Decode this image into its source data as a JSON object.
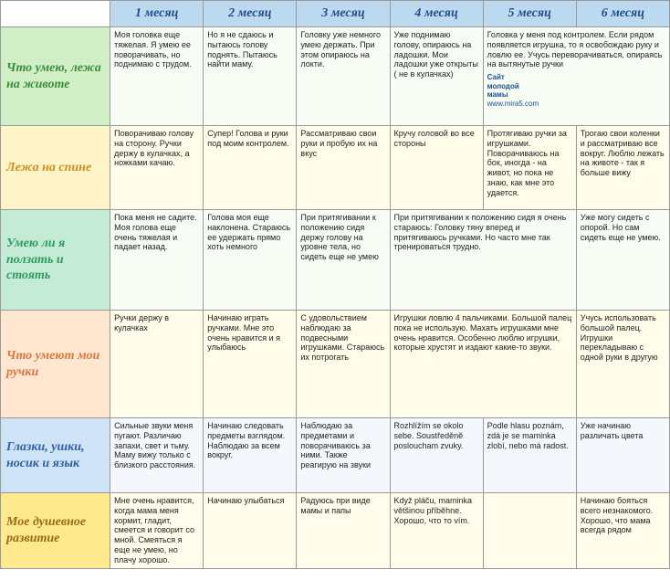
{
  "months": [
    "1 месяц",
    "2 месяц",
    "3 месяц",
    "4 месяц",
    "5 месяц",
    "6 месяц"
  ],
  "site": {
    "t1": "Сайт",
    "t2": "молодой",
    "t3": "мамы",
    "url": "www.mira5.com"
  },
  "rows": [
    {
      "label": "Что умею, лежа на животе",
      "cells": [
        "Моя головка еще тяжелая. Я умею ее поворачивать, но поднимаю с трудом.",
        "Но я не сдаюсь и пытаюсь голову поднять. Пытаюсь найти маму.",
        "Головку уже немного умею держать. При этом опираюсь на локти.",
        "Уже поднимаю голову, опираюсь на ладошки. Мои ладошки уже открыты ( не в кулачках)",
        "Головка у меня под контролем. Если рядом появляется игрушка, то я освобождаю руку и ловлю ее. Учусь переворачиваться, опираясь на вытянутые ручки"
      ],
      "spans": [
        1,
        1,
        1,
        1,
        2
      ]
    },
    {
      "label": "Лежа на спине",
      "cells": [
        "Поворачиваю голову на сторону. Ручки держу в кулачках, а ножками качаю.",
        "Супер! Голова и руки под моим контролем.",
        "Рассматриваю свои руки и пробую их на вкус",
        "Кручу головой во все стороны",
        "Протягиваю ручки за игрушками. Поворачиваюсь на бок, иногда - на живот, но пока не знаю, как мне это удается.",
        "Трогаю свои коленки и рассматриваю все вокруг. Люблю лежать на животе - так я больше вижу"
      ],
      "spans": [
        1,
        1,
        1,
        1,
        1,
        1
      ]
    },
    {
      "label": "Умею ли я ползать и стоять",
      "cells": [
        "Пока меня не садите. Моя голова еще очень тяжелая и падает назад.",
        "Голова моя еще наклонена. Стараюсь ее удержать прямо хоть немного",
        "При притягивании к положению сидя держу голову на уровне тела, но сидеть еще не умею",
        "При притягивании к положению сидя я очень стараюсь: Головку тяну вперед и притягиваюсь ручками. Но часто мне так тренироваться трудно.",
        "Уже могу сидеть с опорой. Но сам сидеть еще не умею."
      ],
      "spans": [
        1,
        1,
        1,
        2,
        1
      ]
    },
    {
      "label": "Что умеют мои ручки",
      "cells": [
        "Ручки держу в кулачках",
        "Начинаю играть ручками. Мне это очень нравится и я улыбаюсь",
        "С удовольствием наблюдаю за подвесными игрушками. Стараюсь их потрогать",
        "Игрушки ловлю 4 пальчиками. Большой палец пока не использую. Махать игрушками мне очень нравится. Особенно люблю игрушки, которые хрустят и издают какие-то звуки.",
        "Учусь использовать большой палец. Игрушки перекладываю с одной руки в другую"
      ],
      "spans": [
        1,
        1,
        1,
        2,
        1
      ]
    },
    {
      "label": "Глазки, ушки, носик и язык",
      "cells": [
        "Сильные звуки меня пугают. Различаю запахи, свет и тьму. Маму вижу только с близкого расстояния.",
        "Начинаю следовать предметы взглядом. Наблюдаю за всем вокруг.",
        "Наблюдаю за предметами и поворачиваюсь за ними. Также реагирую на звуки",
        "Rozhlížím se okolo sebe. Soustředěně posloucham zvuky.",
        "Podle hlasu poznám, zdá je se maminka zlobí, nebo má radost.",
        "Уже начинаю различать цвета"
      ],
      "spans": [
        1,
        1,
        1,
        1,
        1,
        1
      ]
    },
    {
      "label": "Мое душевное развитие",
      "cells": [
        "Мне очень нравится, когда мама меня кормит, гладит, смеется и говорит со мной. Смеяться я еще не умею, но плачу хорошо.",
        "Начинаю улыбаться",
        "Радуюсь при виде мамы и папы",
        "Když pláču, maminka většinou příběhne. Хорошо, что то vím.",
        "",
        "Начинаю бояться всего незнакомого. Хорошо, что мама всегда рядом"
      ],
      "spans": [
        1,
        1,
        1,
        1,
        1,
        1
      ]
    }
  ]
}
